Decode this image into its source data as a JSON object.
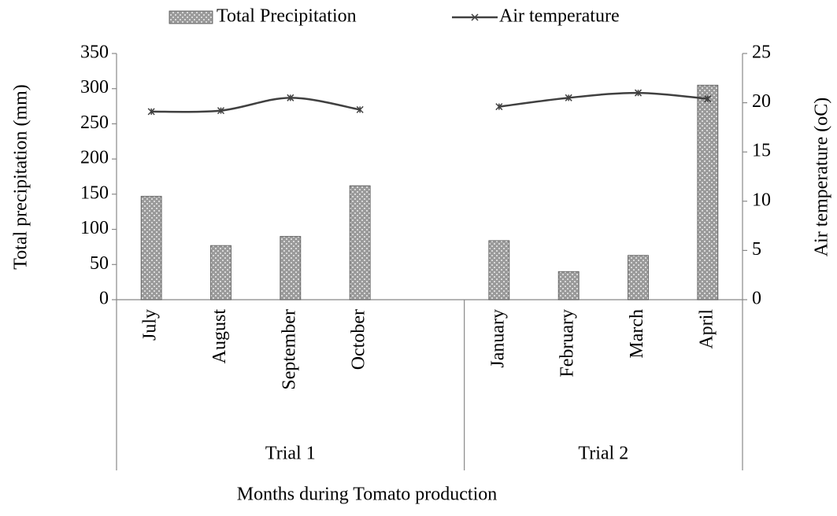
{
  "chart_data": {
    "type": "bar",
    "x_label": "Months during Tomato production",
    "y_label": "Total precipitation (mm)",
    "y2_label": "Air temperature (oC)",
    "categories": [
      "July",
      "August",
      "September",
      "October",
      null,
      "January",
      "February",
      "March",
      "April"
    ],
    "groups": [
      {
        "label": "Trial 1",
        "size": 5
      },
      {
        "label": "Trial 2",
        "size": 4
      }
    ],
    "series": [
      {
        "name": "Total Precipitation",
        "type": "bar",
        "color": "#808080",
        "values": [
          147,
          77,
          90,
          162,
          null,
          84,
          40,
          63,
          305
        ]
      },
      {
        "name": "Air temperature",
        "type": "line",
        "axis": "y2",
        "color": "#404040",
        "values": [
          19.1,
          19.2,
          20.5,
          19.3,
          null,
          19.6,
          20.5,
          21.0,
          20.4
        ]
      }
    ],
    "ylim": [
      0,
      350
    ],
    "yticks": [
      0,
      50,
      100,
      150,
      200,
      250,
      300,
      350
    ],
    "y2lim": [
      0,
      25
    ],
    "y2ticks": [
      0,
      5,
      10,
      15,
      20,
      25
    ],
    "legend": "top"
  }
}
